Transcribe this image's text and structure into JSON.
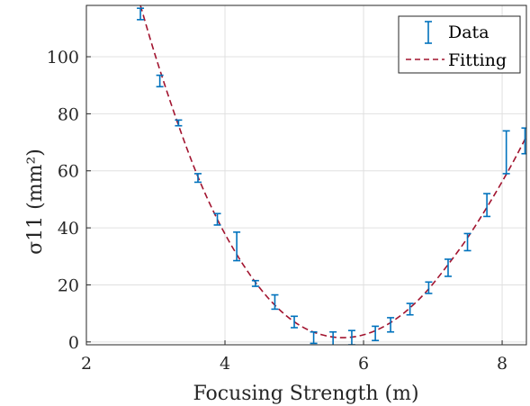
{
  "chart_data": {
    "type": "scatter",
    "xlabel": "Focusing Strength (m)",
    "ylabel": "σ11 (mm²)",
    "xlim": [
      2,
      8.35
    ],
    "ylim": [
      -1,
      118
    ],
    "x_ticks": [
      "2",
      "4",
      "6",
      "8"
    ],
    "y_ticks": [
      "0",
      "20",
      "40",
      "60",
      "80",
      "100"
    ],
    "grid": true,
    "legend_position": "top-right",
    "series": [
      {
        "name": "Data",
        "kind": "errorbar",
        "color": "#0072BD",
        "points": [
          {
            "x": 2.78,
            "y": 115.0,
            "err": 2.0
          },
          {
            "x": 3.06,
            "y": 91.5,
            "err": 2.0
          },
          {
            "x": 3.33,
            "y": 76.8,
            "err": 1.0
          },
          {
            "x": 3.61,
            "y": 57.5,
            "err": 1.5
          },
          {
            "x": 3.89,
            "y": 43.0,
            "err": 2.0
          },
          {
            "x": 4.17,
            "y": 33.5,
            "err": 5.0
          },
          {
            "x": 4.44,
            "y": 20.5,
            "err": 1.0
          },
          {
            "x": 4.72,
            "y": 14.0,
            "err": 2.5
          },
          {
            "x": 5.0,
            "y": 7.0,
            "err": 2.0
          },
          {
            "x": 5.28,
            "y": 1.5,
            "err": 2.0
          },
          {
            "x": 5.56,
            "y": 1.0,
            "err": 2.5
          },
          {
            "x": 5.83,
            "y": 1.5,
            "err": 2.5
          },
          {
            "x": 6.17,
            "y": 3.0,
            "err": 2.5
          },
          {
            "x": 6.39,
            "y": 6.0,
            "err": 2.5
          },
          {
            "x": 6.67,
            "y": 11.5,
            "err": 2.0
          },
          {
            "x": 6.94,
            "y": 19.0,
            "err": 2.0
          },
          {
            "x": 7.22,
            "y": 26.0,
            "err": 3.0
          },
          {
            "x": 7.5,
            "y": 35.0,
            "err": 3.0
          },
          {
            "x": 7.78,
            "y": 48.0,
            "err": 4.0
          },
          {
            "x": 8.06,
            "y": 66.5,
            "err": 7.5
          },
          {
            "x": 8.33,
            "y": 70.5,
            "err": 4.5
          }
        ]
      },
      {
        "name": "Fitting",
        "kind": "line",
        "color": "#A2142F",
        "line_style": "dashed",
        "points": [
          {
            "x": 2.78,
            "y": 118.0
          },
          {
            "x": 3.0,
            "y": 100.0
          },
          {
            "x": 3.3,
            "y": 78.0
          },
          {
            "x": 3.6,
            "y": 58.5
          },
          {
            "x": 3.9,
            "y": 42.5
          },
          {
            "x": 4.2,
            "y": 29.5
          },
          {
            "x": 4.5,
            "y": 19.0
          },
          {
            "x": 4.8,
            "y": 11.0
          },
          {
            "x": 5.1,
            "y": 5.5
          },
          {
            "x": 5.4,
            "y": 2.5
          },
          {
            "x": 5.7,
            "y": 1.5
          },
          {
            "x": 6.0,
            "y": 2.5
          },
          {
            "x": 6.3,
            "y": 5.5
          },
          {
            "x": 6.6,
            "y": 10.5
          },
          {
            "x": 6.9,
            "y": 17.5
          },
          {
            "x": 7.2,
            "y": 26.5
          },
          {
            "x": 7.5,
            "y": 36.5
          },
          {
            "x": 7.8,
            "y": 48.0
          },
          {
            "x": 8.1,
            "y": 60.5
          },
          {
            "x": 8.35,
            "y": 72.0
          }
        ]
      }
    ]
  }
}
